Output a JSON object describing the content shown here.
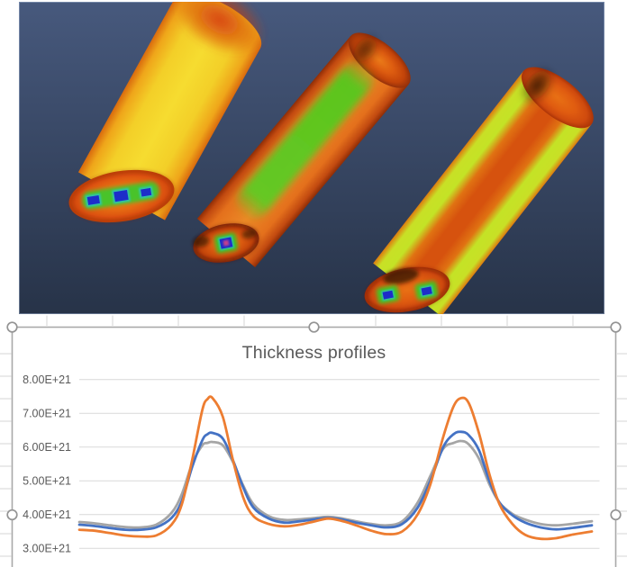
{
  "render_panel": {
    "background_top": "#47597D",
    "background_bottom": "#273348",
    "colormap_scale": [
      "#1D2DC9",
      "#2FC3B0",
      "#49C32C",
      "#C8E026",
      "#F6DC30",
      "#EC8826",
      "#D6520E",
      "#C23B08"
    ],
    "cylinders": [
      {
        "id": "left",
        "dominant_color": "#F3CF28",
        "edge_color": "#D96A0E",
        "tip_color": "#D63C0A",
        "endface_blue_squares": 3
      },
      {
        "id": "middle",
        "dominant_color": "#E4701C",
        "stripe_color": "#5ECB22",
        "endface_blue_squares": 1
      },
      {
        "id": "right",
        "dominant_color": "#D6520E",
        "band_color": "#C8E026",
        "tip_color": "#241505",
        "endface_blue_squares": 2
      }
    ]
  },
  "selection": {
    "selected": true,
    "handles": [
      "top-left",
      "top-center",
      "top-right",
      "middle-left",
      "middle-right"
    ],
    "border_color": "#A9A9A9"
  },
  "chart_data": {
    "type": "line",
    "title": "Thickness profiles",
    "legend": "none",
    "grid": true,
    "x_axis": {
      "label": "",
      "tick_labels_visible": false,
      "range": [
        0,
        100
      ]
    },
    "y_axis": {
      "unit": "x10^21",
      "tick_values": [
        8,
        7,
        6,
        5,
        4,
        3
      ],
      "tick_labels": [
        "8.00E+21",
        "7.00E+21",
        "6.00E+21",
        "5.00E+21",
        "4.00E+21",
        "3.00E+21"
      ],
      "visible_min": 3,
      "visible_max": 8
    },
    "x": [
      0,
      3,
      6,
      9,
      12,
      15,
      18,
      20,
      22,
      24,
      25,
      26,
      28,
      30,
      32,
      34,
      37,
      40,
      43,
      46,
      48.5,
      51,
      54,
      57,
      60,
      63,
      66,
      68.5,
      71,
      73,
      74.5,
      76,
      78,
      80,
      82,
      84.5,
      87,
      90,
      93,
      96,
      100
    ],
    "series": [
      {
        "name": "gray",
        "color": "#A5A5A5",
        "values": [
          3.78,
          3.74,
          3.68,
          3.63,
          3.62,
          3.7,
          4.05,
          4.6,
          5.5,
          6.05,
          6.12,
          6.15,
          6.05,
          5.55,
          4.85,
          4.3,
          3.95,
          3.84,
          3.86,
          3.9,
          3.93,
          3.89,
          3.8,
          3.72,
          3.68,
          3.8,
          4.35,
          5.15,
          5.95,
          6.12,
          6.18,
          6.08,
          5.65,
          4.9,
          4.35,
          4.02,
          3.85,
          3.72,
          3.68,
          3.72,
          3.8
        ]
      },
      {
        "name": "blue",
        "color": "#4472C4",
        "values": [
          3.7,
          3.66,
          3.6,
          3.55,
          3.55,
          3.62,
          3.9,
          4.4,
          5.4,
          6.2,
          6.38,
          6.42,
          6.25,
          5.6,
          4.8,
          4.2,
          3.88,
          3.76,
          3.8,
          3.86,
          3.9,
          3.86,
          3.76,
          3.68,
          3.62,
          3.72,
          4.2,
          5.0,
          6.0,
          6.38,
          6.45,
          6.35,
          5.9,
          5.0,
          4.35,
          3.98,
          3.76,
          3.62,
          3.56,
          3.6,
          3.68
        ]
      },
      {
        "name": "orange",
        "color": "#ED7D31",
        "values": [
          3.55,
          3.52,
          3.45,
          3.38,
          3.35,
          3.38,
          3.7,
          4.3,
          5.6,
          7.1,
          7.42,
          7.45,
          6.9,
          5.6,
          4.5,
          3.95,
          3.72,
          3.65,
          3.7,
          3.8,
          3.88,
          3.82,
          3.68,
          3.52,
          3.42,
          3.5,
          4.0,
          4.9,
          6.3,
          7.2,
          7.45,
          7.3,
          6.4,
          5.2,
          4.3,
          3.72,
          3.4,
          3.28,
          3.3,
          3.4,
          3.5
        ]
      }
    ]
  }
}
